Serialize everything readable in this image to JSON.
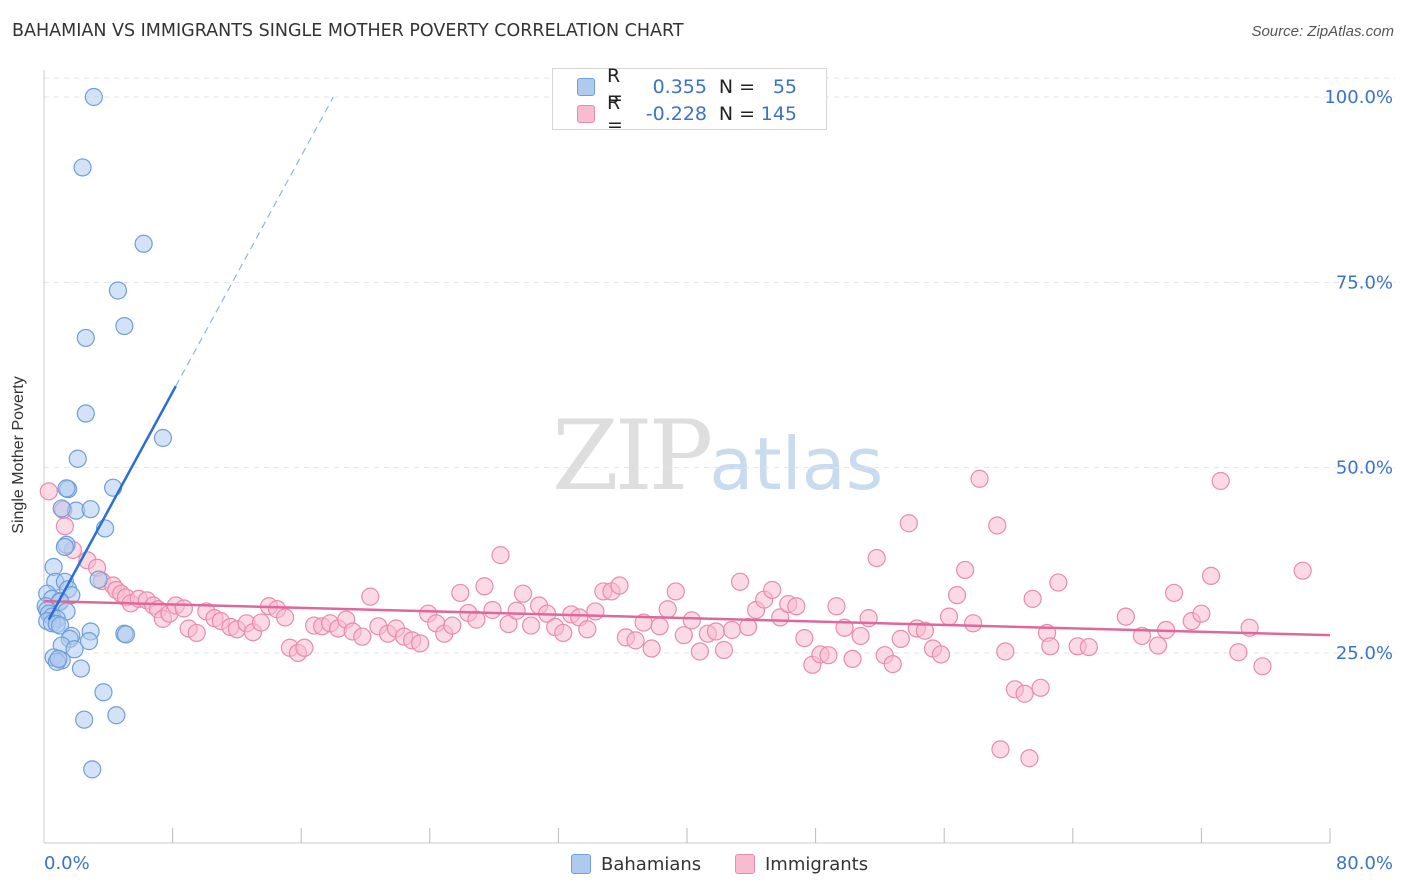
{
  "header": {
    "title": "BAHAMIAN VS IMMIGRANTS SINGLE MOTHER POVERTY CORRELATION CHART",
    "source": "Source: ZipAtlas.com"
  },
  "watermark": {
    "zip": "ZIP",
    "atlas": "atlas"
  },
  "legend": {
    "rows": [
      {
        "r_label": "R =",
        "r_value": "0.355",
        "n_label": "N =",
        "n_value": "55"
      },
      {
        "r_label": "R =",
        "r_value": "-0.228",
        "n_label": "N =",
        "n_value": "145"
      }
    ]
  },
  "bottom_legend": {
    "bahamians": "Bahamians",
    "immigrants": "Immigrants"
  },
  "colors": {
    "bahamians_fill": "#aecbee",
    "bahamians_stroke": "#6f9fd8",
    "bahamians_line": "#2a6fd6",
    "immigrants_fill": "#f8bcd0",
    "immigrants_stroke": "#e98bab",
    "immigrants_line": "#e0679a",
    "axis_text": "#3a74c7",
    "grid": "#e3e3e3"
  },
  "chart_data": {
    "type": "scatter",
    "title": "BAHAMIAN VS IMMIGRANTS SINGLE MOTHER POVERTY CORRELATION CHART",
    "xlabel": "",
    "ylabel": "Single Mother Poverty",
    "xlim": [
      0,
      80
    ],
    "ylim": [
      0,
      105
    ],
    "x_tick_labels": [
      "0.0%",
      "80.0%"
    ],
    "y_tick_labels": [
      "25.0%",
      "50.0%",
      "75.0%",
      "100.0%"
    ],
    "y_ticks": [
      25,
      50,
      75,
      100
    ],
    "grid": true,
    "series": [
      {
        "name": "Bahamians",
        "R": 0.355,
        "N": 55,
        "trend": {
          "x0": 0.3,
          "y0": 29.5,
          "x1": 8.2,
          "y1": 61.0,
          "dash_to_x": 18.0,
          "dash_to_y": 100.0
        },
        "points": [
          [
            3.1,
            100
          ],
          [
            2.4,
            90.5
          ],
          [
            6.2,
            80.2
          ],
          [
            4.6,
            73.9
          ],
          [
            5.0,
            69.1
          ],
          [
            2.6,
            67.5
          ],
          [
            2.6,
            57.3
          ],
          [
            7.4,
            54.0
          ],
          [
            2.1,
            51.2
          ],
          [
            1.5,
            47.1
          ],
          [
            4.3,
            47.3
          ],
          [
            1.4,
            47.2
          ],
          [
            2.0,
            44.2
          ],
          [
            1.1,
            44.5
          ],
          [
            2.9,
            44.4
          ],
          [
            3.8,
            41.8
          ],
          [
            1.4,
            39.6
          ],
          [
            1.3,
            39.3
          ],
          [
            0.6,
            36.6
          ],
          [
            0.7,
            34.6
          ],
          [
            1.3,
            34.6
          ],
          [
            3.4,
            34.9
          ],
          [
            0.2,
            33.0
          ],
          [
            1.5,
            33.6
          ],
          [
            1.7,
            32.8
          ],
          [
            0.5,
            32.3
          ],
          [
            1.0,
            32.0
          ],
          [
            1.0,
            31.9
          ],
          [
            0.1,
            31.3
          ],
          [
            0.2,
            30.8
          ],
          [
            1.4,
            30.6
          ],
          [
            0.3,
            30.3
          ],
          [
            0.5,
            29.9
          ],
          [
            0.8,
            29.6
          ],
          [
            0.2,
            29.3
          ],
          [
            0.5,
            29.0
          ],
          [
            0.8,
            28.9
          ],
          [
            1.0,
            28.7
          ],
          [
            2.9,
            27.9
          ],
          [
            5.0,
            27.6
          ],
          [
            5.1,
            27.5
          ],
          [
            1.7,
            27.3
          ],
          [
            1.6,
            26.9
          ],
          [
            2.8,
            26.6
          ],
          [
            1.1,
            26.0
          ],
          [
            1.9,
            25.5
          ],
          [
            0.6,
            24.4
          ],
          [
            1.1,
            24.0
          ],
          [
            0.8,
            23.8
          ],
          [
            2.3,
            22.9
          ],
          [
            3.7,
            19.7
          ],
          [
            4.5,
            16.6
          ],
          [
            2.5,
            16.0
          ],
          [
            3.0,
            9.3
          ],
          [
            0.9,
            24.2
          ]
        ]
      },
      {
        "name": "Immigrants",
        "R": -0.228,
        "N": 145,
        "trend": {
          "x0": 0.0,
          "y0": 32.0,
          "x1": 80.0,
          "y1": 27.4
        },
        "points": [
          [
            0.3,
            46.8
          ],
          [
            1.2,
            44.3
          ],
          [
            1.3,
            42.1
          ],
          [
            1.8,
            38.9
          ],
          [
            2.7,
            37.5
          ],
          [
            3.3,
            36.5
          ],
          [
            3.6,
            34.7
          ],
          [
            4.3,
            34.1
          ],
          [
            4.5,
            33.5
          ],
          [
            4.8,
            33.0
          ],
          [
            5.1,
            32.5
          ],
          [
            5.4,
            31.7
          ],
          [
            5.9,
            32.3
          ],
          [
            6.4,
            32.1
          ],
          [
            6.8,
            31.4
          ],
          [
            7.1,
            30.9
          ],
          [
            7.4,
            29.6
          ],
          [
            7.8,
            30.3
          ],
          [
            8.2,
            31.4
          ],
          [
            8.7,
            31.0
          ],
          [
            9.0,
            28.3
          ],
          [
            9.5,
            27.7
          ],
          [
            10.1,
            30.6
          ],
          [
            10.6,
            29.7
          ],
          [
            11.0,
            29.3
          ],
          [
            11.6,
            28.5
          ],
          [
            12.0,
            28.2
          ],
          [
            12.6,
            29.0
          ],
          [
            13.0,
            27.8
          ],
          [
            13.5,
            29.1
          ],
          [
            14.0,
            31.3
          ],
          [
            14.5,
            30.9
          ],
          [
            15.0,
            29.8
          ],
          [
            15.3,
            25.7
          ],
          [
            15.8,
            25.0
          ],
          [
            16.2,
            25.7
          ],
          [
            16.8,
            28.7
          ],
          [
            17.3,
            28.6
          ],
          [
            17.8,
            29.0
          ],
          [
            18.3,
            28.3
          ],
          [
            18.8,
            29.5
          ],
          [
            19.2,
            27.9
          ],
          [
            19.8,
            27.2
          ],
          [
            20.3,
            32.6
          ],
          [
            20.8,
            28.6
          ],
          [
            21.4,
            27.6
          ],
          [
            21.9,
            28.3
          ],
          [
            22.4,
            27.2
          ],
          [
            22.9,
            26.7
          ],
          [
            23.4,
            26.3
          ],
          [
            23.9,
            30.3
          ],
          [
            24.4,
            29.0
          ],
          [
            24.9,
            27.6
          ],
          [
            25.4,
            28.7
          ],
          [
            25.9,
            33.1
          ],
          [
            26.4,
            30.4
          ],
          [
            26.9,
            29.5
          ],
          [
            27.4,
            34.0
          ],
          [
            27.9,
            30.8
          ],
          [
            28.4,
            38.2
          ],
          [
            28.9,
            28.9
          ],
          [
            29.4,
            30.7
          ],
          [
            29.8,
            33.0
          ],
          [
            30.3,
            28.7
          ],
          [
            30.8,
            31.4
          ],
          [
            31.3,
            30.3
          ],
          [
            31.8,
            28.5
          ],
          [
            32.3,
            27.7
          ],
          [
            32.8,
            30.2
          ],
          [
            33.3,
            29.8
          ],
          [
            33.8,
            28.2
          ],
          [
            34.3,
            30.6
          ],
          [
            34.8,
            33.3
          ],
          [
            35.3,
            33.3
          ],
          [
            35.8,
            34.1
          ],
          [
            36.2,
            27.1
          ],
          [
            36.8,
            26.7
          ],
          [
            37.3,
            29.1
          ],
          [
            37.8,
            25.6
          ],
          [
            38.3,
            28.6
          ],
          [
            38.8,
            30.9
          ],
          [
            39.3,
            33.3
          ],
          [
            39.8,
            27.4
          ],
          [
            40.3,
            29.4
          ],
          [
            40.8,
            25.2
          ],
          [
            41.3,
            27.6
          ],
          [
            41.8,
            27.9
          ],
          [
            42.3,
            25.4
          ],
          [
            42.8,
            28.1
          ],
          [
            43.3,
            34.6
          ],
          [
            43.8,
            28.5
          ],
          [
            44.3,
            30.8
          ],
          [
            44.8,
            32.2
          ],
          [
            45.3,
            33.5
          ],
          [
            45.8,
            29.8
          ],
          [
            46.3,
            31.6
          ],
          [
            46.8,
            31.3
          ],
          [
            47.3,
            27.0
          ],
          [
            47.8,
            23.4
          ],
          [
            48.3,
            24.8
          ],
          [
            48.8,
            24.7
          ],
          [
            49.3,
            31.3
          ],
          [
            49.8,
            28.4
          ],
          [
            50.3,
            24.2
          ],
          [
            50.8,
            27.3
          ],
          [
            51.3,
            29.7
          ],
          [
            51.8,
            37.8
          ],
          [
            52.3,
            24.7
          ],
          [
            52.8,
            23.5
          ],
          [
            53.3,
            26.9
          ],
          [
            53.8,
            42.5
          ],
          [
            54.3,
            28.3
          ],
          [
            54.8,
            28.0
          ],
          [
            55.3,
            25.6
          ],
          [
            55.8,
            24.8
          ],
          [
            56.3,
            29.9
          ],
          [
            56.8,
            32.8
          ],
          [
            57.3,
            36.2
          ],
          [
            57.8,
            29.0
          ],
          [
            58.2,
            48.5
          ],
          [
            59.3,
            42.2
          ],
          [
            59.8,
            25.2
          ],
          [
            60.4,
            20.1
          ],
          [
            61.0,
            19.5
          ],
          [
            61.5,
            32.3
          ],
          [
            62.0,
            20.3
          ],
          [
            62.4,
            27.7
          ],
          [
            62.6,
            25.9
          ],
          [
            63.1,
            34.5
          ],
          [
            64.3,
            25.9
          ],
          [
            65.0,
            25.8
          ],
          [
            59.5,
            12.0
          ],
          [
            61.3,
            10.8
          ],
          [
            67.3,
            29.9
          ],
          [
            68.3,
            27.3
          ],
          [
            69.3,
            26.0
          ],
          [
            69.8,
            28.1
          ],
          [
            70.3,
            33.1
          ],
          [
            71.4,
            29.3
          ],
          [
            72.0,
            30.3
          ],
          [
            72.6,
            35.4
          ],
          [
            73.2,
            48.2
          ],
          [
            74.3,
            25.1
          ],
          [
            75.0,
            28.4
          ],
          [
            75.8,
            23.2
          ],
          [
            78.3,
            36.1
          ]
        ]
      }
    ]
  }
}
